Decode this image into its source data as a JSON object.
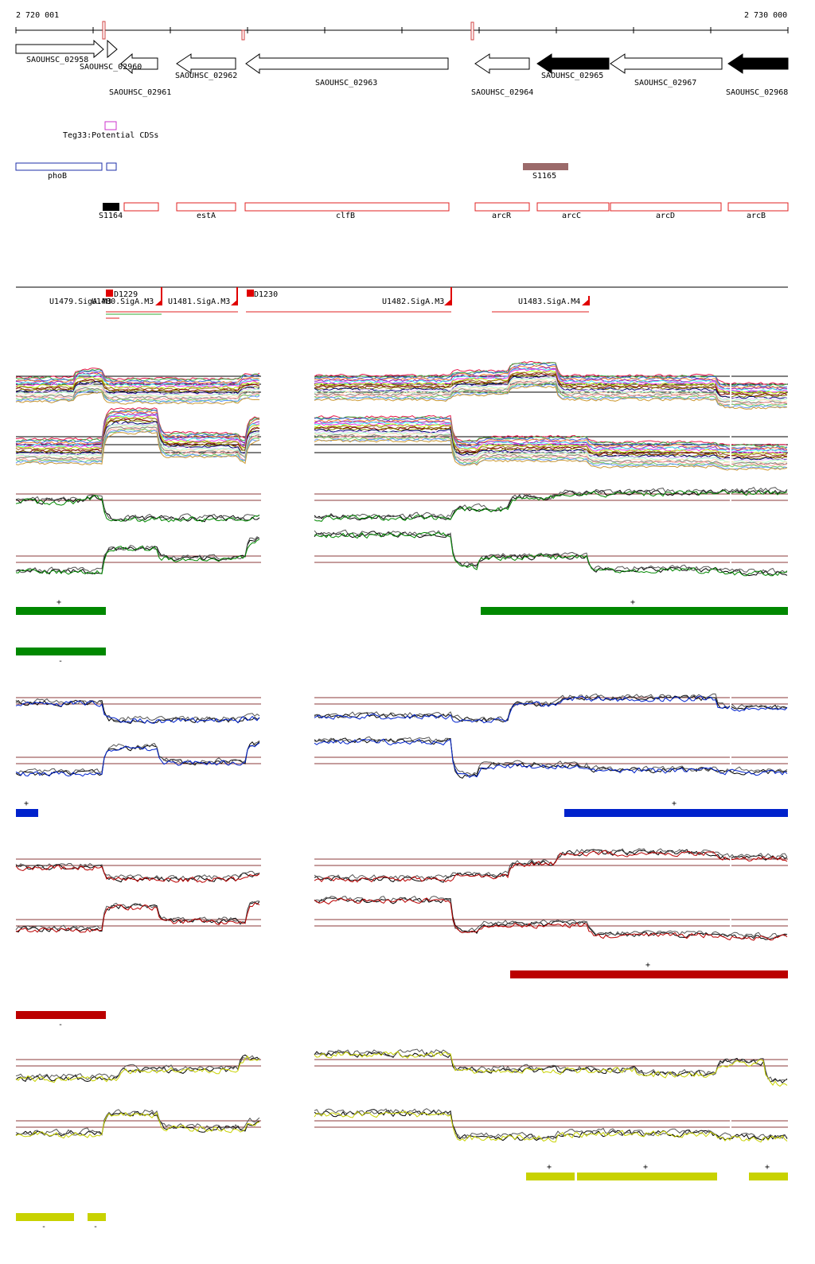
{
  "ruler": {
    "start_label": "2 720 001",
    "end_label": "2 730 000"
  },
  "genes": [
    {
      "label": "SAOUHSC_02958",
      "strand": "+",
      "filled": false
    },
    {
      "label": "SAOUHSC_02960",
      "strand": "+",
      "filled": false
    },
    {
      "label": "SAOUHSC_02961",
      "strand": "-",
      "filled": false
    },
    {
      "label": "SAOUHSC_02962",
      "strand": "-",
      "filled": false
    },
    {
      "label": "SAOUHSC_02963",
      "strand": "-",
      "filled": false
    },
    {
      "label": "SAOUHSC_02964",
      "strand": "-",
      "filled": false
    },
    {
      "label": "SAOUHSC_02965",
      "strand": "-",
      "filled": true
    },
    {
      "label": "SAOUHSC_02967",
      "strand": "-",
      "filled": false
    },
    {
      "label": "SAOUHSC_02968",
      "strand": "-",
      "filled": true
    }
  ],
  "teg": {
    "label": "Teg33:Potential CDSs"
  },
  "pho": {
    "label": "phoB"
  },
  "segments": [
    {
      "label": "S1165"
    },
    {
      "label": "S1164"
    }
  ],
  "operon_genes": [
    {
      "label": "estA"
    },
    {
      "label": "clfB"
    },
    {
      "label": "arcR"
    },
    {
      "label": "arcC"
    },
    {
      "label": "arcD"
    },
    {
      "label": "arcB"
    }
  ],
  "transcription_units": [
    {
      "label": "U1479.SigA.M3"
    },
    {
      "label": "U1480.SigA.M3"
    },
    {
      "label": "U1481.SigA.M3"
    },
    {
      "label": "U1482.SigA.M3"
    },
    {
      "label": "U1483.SigA.M4"
    }
  ],
  "downshift": [
    {
      "label": "D1229"
    },
    {
      "label": "D1230"
    }
  ],
  "condition_colors": {
    "green": "#008800",
    "blue": "#0022cc",
    "red": "#bb0000",
    "yellow": "#c8d200",
    "threshold": "#8b3a3a"
  },
  "strand_marks": {
    "plus": "+",
    "minus": "-"
  }
}
